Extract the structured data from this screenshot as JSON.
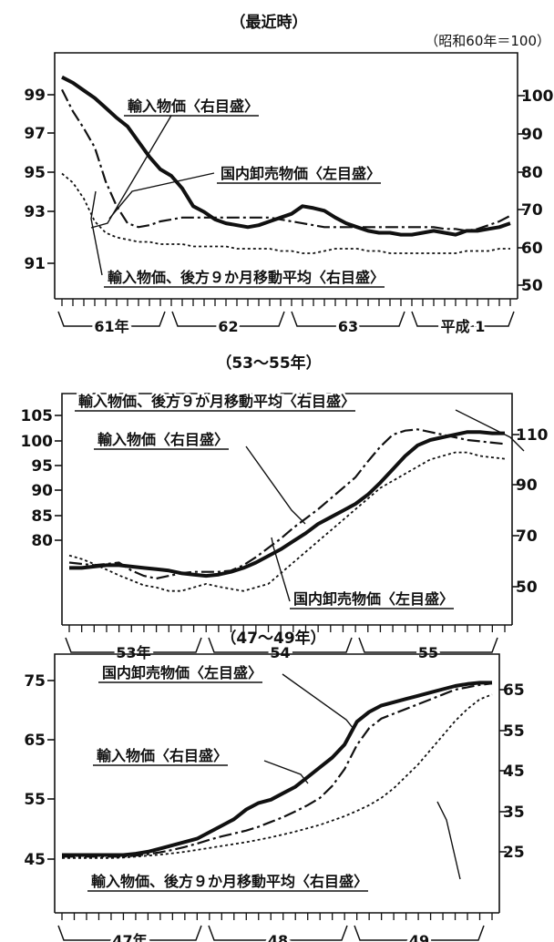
{
  "figure": {
    "unit_note": "（昭和60年＝100）"
  },
  "chart_data": [
    {
      "type": "line",
      "title": "（最近時）",
      "left_ticks": [
        "99",
        "97",
        "95",
        "93",
        "91"
      ],
      "right_ticks": [
        "100",
        "90",
        "80",
        "70",
        "60",
        "50"
      ],
      "left_range": [
        90,
        100
      ],
      "right_range": [
        45,
        105
      ],
      "periods": [
        "61年",
        "62",
        "63",
        "平成 1"
      ],
      "months": 42,
      "series": [
        {
          "name": "輸入物価〈右目盛〉",
          "axis": "right",
          "style": "bold",
          "values": [
            101.0,
            99.5,
            97.5,
            95.5,
            92.9,
            90.3,
            88.0,
            84.0,
            80.0,
            76.7,
            75.0,
            71.7,
            67.0,
            65.5,
            63.5,
            62.5,
            62.0,
            61.5,
            62.0,
            63.0,
            64.0,
            65.0,
            67.0,
            66.5,
            65.8,
            64.0,
            62.5,
            61.5,
            60.5,
            60.0,
            60.0,
            59.5,
            59.5,
            60.0,
            60.5,
            60.0,
            59.5,
            60.5,
            60.5,
            61.0,
            61.5,
            62.5
          ]
        },
        {
          "name": "国内卸売物価〈左目盛〉",
          "axis": "left",
          "style": "dotted",
          "values": [
            95.1,
            94.7,
            94.0,
            93.0,
            92.5,
            92.3,
            92.2,
            92.1,
            92.1,
            92.0,
            92.0,
            92.0,
            91.9,
            91.9,
            91.9,
            91.9,
            91.8,
            91.8,
            91.8,
            91.8,
            91.7,
            91.7,
            91.6,
            91.6,
            91.7,
            91.8,
            91.8,
            91.8,
            91.7,
            91.7,
            91.6,
            91.6,
            91.6,
            91.6,
            91.6,
            91.6,
            91.6,
            91.7,
            91.7,
            91.7,
            91.8,
            91.8
          ]
        },
        {
          "name": "輸入物価、後方９か月移動平均〈右目盛〉",
          "axis": "right",
          "style": "dashdot",
          "values": [
            97.7,
            92.0,
            87.5,
            82.5,
            73.5,
            67.0,
            62.5,
            61.5,
            62.0,
            63.0,
            63.5,
            64.0,
            64.0,
            64.0,
            64.0,
            64.0,
            64.0,
            64.0,
            64.0,
            64.0,
            63.5,
            63.0,
            62.5,
            62.0,
            61.5,
            61.5,
            61.5,
            61.5,
            61.5,
            61.5,
            61.5,
            61.5,
            61.5,
            61.5,
            61.5,
            61.0,
            61.0,
            60.5,
            61.0,
            62.0,
            63.0,
            64.5
          ]
        }
      ],
      "annotations": [
        "輸入物価〈右目盛〉",
        "国内卸売物価〈左目盛〉",
        "輸入物価、後方９か月移動平均〈右目盛〉"
      ]
    },
    {
      "type": "line",
      "title": "（53〜55年）",
      "left_ticks": [
        "105",
        "100",
        "95",
        "90",
        "85",
        "80"
      ],
      "right_ticks": [
        "110",
        "90",
        "70",
        "50"
      ],
      "left_range": [
        77.5,
        107.5
      ],
      "right_range": [
        40,
        120
      ],
      "periods": [
        "53年",
        "54",
        "55"
      ],
      "months": 36,
      "series": [
        {
          "name": "輸入物価〈右目盛〉",
          "axis": "right",
          "style": "bold",
          "values": [
            58.0,
            58.0,
            58.5,
            59.0,
            59.0,
            58.5,
            58.0,
            57.5,
            57.0,
            56.0,
            55.5,
            55.0,
            55.5,
            56.5,
            58.0,
            60.0,
            62.5,
            65.0,
            68.0,
            71.0,
            74.5,
            77.0,
            79.5,
            82.0,
            85.5,
            90.0,
            95.0,
            100.0,
            104.0,
            106.0,
            107.0,
            108.0,
            109.0,
            109.0,
            108.5,
            108.5
          ]
        },
        {
          "name": "国内卸売物価〈左目盛〉",
          "axis": "left",
          "style": "dotted",
          "values": [
            86.0,
            85.5,
            84.8,
            84.0,
            83.2,
            82.5,
            81.8,
            81.5,
            81.0,
            81.0,
            81.5,
            82.0,
            81.6,
            81.3,
            81.0,
            81.5,
            82.0,
            83.5,
            85.0,
            86.5,
            88.0,
            89.5,
            91.0,
            92.5,
            94.0,
            95.5,
            96.5,
            97.5,
            98.5,
            99.5,
            100.0,
            100.5,
            100.5,
            100.0,
            99.8,
            99.6
          ]
        },
        {
          "name": "輸入物価、後方９か月移動平均〈右目盛〉",
          "axis": "right",
          "style": "dashdot",
          "values": [
            60.0,
            59.5,
            59.0,
            59.5,
            60.0,
            57.0,
            55.0,
            54.0,
            55.0,
            56.0,
            56.5,
            56.5,
            56.5,
            57.0,
            59.0,
            62.0,
            65.5,
            69.0,
            73.0,
            76.5,
            80.0,
            84.0,
            88.0,
            92.0,
            98.0,
            103.5,
            108.0,
            109.5,
            110.0,
            109.0,
            108.0,
            107.0,
            106.0,
            105.5,
            105.0,
            104.5
          ]
        }
      ],
      "annotations": [
        "輸入物価、後方９か月移動平均〈右目盛〉",
        "輸入物価〈右目盛〉",
        "国内卸売物価〈左目盛〉"
      ]
    },
    {
      "type": "line",
      "title": "（47〜49年）",
      "left_ticks": [
        "75",
        "65",
        "55",
        "45"
      ],
      "right_ticks": [
        "65",
        "55",
        "45",
        "35",
        "25"
      ],
      "left_range": [
        42,
        79
      ],
      "right_range": [
        20,
        70
      ],
      "periods": [
        "47年",
        "48",
        "49"
      ],
      "months": 36,
      "series": [
        {
          "name": "国内卸売物価〈左目盛〉",
          "axis": "left",
          "style": "bold",
          "values": [
            49.5,
            49.5,
            49.5,
            49.5,
            49.5,
            49.5,
            49.7,
            50.0,
            50.5,
            51.0,
            51.5,
            52.0,
            53.0,
            54.0,
            55.0,
            56.5,
            57.5,
            58.0,
            59.0,
            60.0,
            61.5,
            63.0,
            64.5,
            66.5,
            70.0,
            71.5,
            72.5,
            73.0,
            73.5,
            74.0,
            74.5,
            75.0,
            75.5,
            75.8,
            76.0,
            76.0
          ]
        },
        {
          "name": "輸入物価〈右目盛〉",
          "axis": "right",
          "style": "dashdot",
          "values": [
            29.8,
            29.8,
            29.8,
            29.8,
            29.8,
            29.8,
            30.0,
            30.3,
            30.7,
            31.2,
            31.8,
            32.5,
            33.3,
            34.0,
            34.6,
            35.2,
            36.0,
            37.0,
            38.0,
            39.2,
            40.5,
            42.0,
            44.5,
            48.0,
            53.0,
            56.5,
            58.5,
            59.5,
            60.5,
            61.5,
            62.5,
            63.5,
            64.5,
            65.0,
            65.5,
            65.8
          ]
        },
        {
          "name": "輸入物価、後方９か月移動平均〈右目盛〉",
          "axis": "right",
          "style": "dotted",
          "values": [
            29.5,
            29.5,
            29.5,
            29.5,
            29.5,
            29.6,
            29.8,
            30.0,
            30.2,
            30.5,
            30.8,
            31.2,
            31.6,
            32.0,
            32.4,
            32.8,
            33.3,
            33.8,
            34.4,
            35.0,
            35.7,
            36.4,
            37.3,
            38.2,
            39.3,
            40.5,
            42.0,
            44.0,
            46.5,
            49.0,
            52.0,
            55.0,
            58.0,
            60.5,
            62.5,
            63.5
          ]
        }
      ],
      "annotations": [
        "国内卸売物価〈左目盛〉",
        "輸入物価〈右目盛〉",
        "輸入物価、後方９か月移動平均〈右目盛〉"
      ]
    }
  ]
}
